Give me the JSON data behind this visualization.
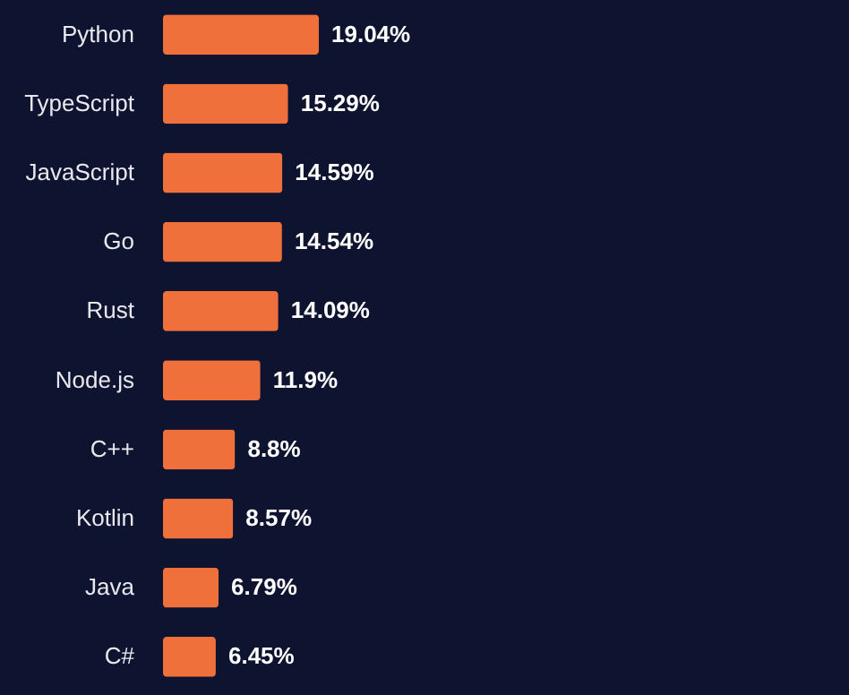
{
  "chart_data": {
    "type": "bar",
    "orientation": "horizontal",
    "categories": [
      "Python",
      "TypeScript",
      "JavaScript",
      "Go",
      "Rust",
      "Node.js",
      "C++",
      "Kotlin",
      "Java",
      "C#"
    ],
    "values": [
      19.04,
      15.29,
      14.59,
      14.54,
      14.09,
      11.9,
      8.8,
      8.57,
      6.79,
      6.45
    ],
    "value_labels": [
      "19.04%",
      "15.29%",
      "14.59%",
      "14.54%",
      "14.09%",
      "11.9%",
      "8.8%",
      "8.57%",
      "6.79%",
      "6.45%"
    ],
    "color": "#f0703c"
  }
}
